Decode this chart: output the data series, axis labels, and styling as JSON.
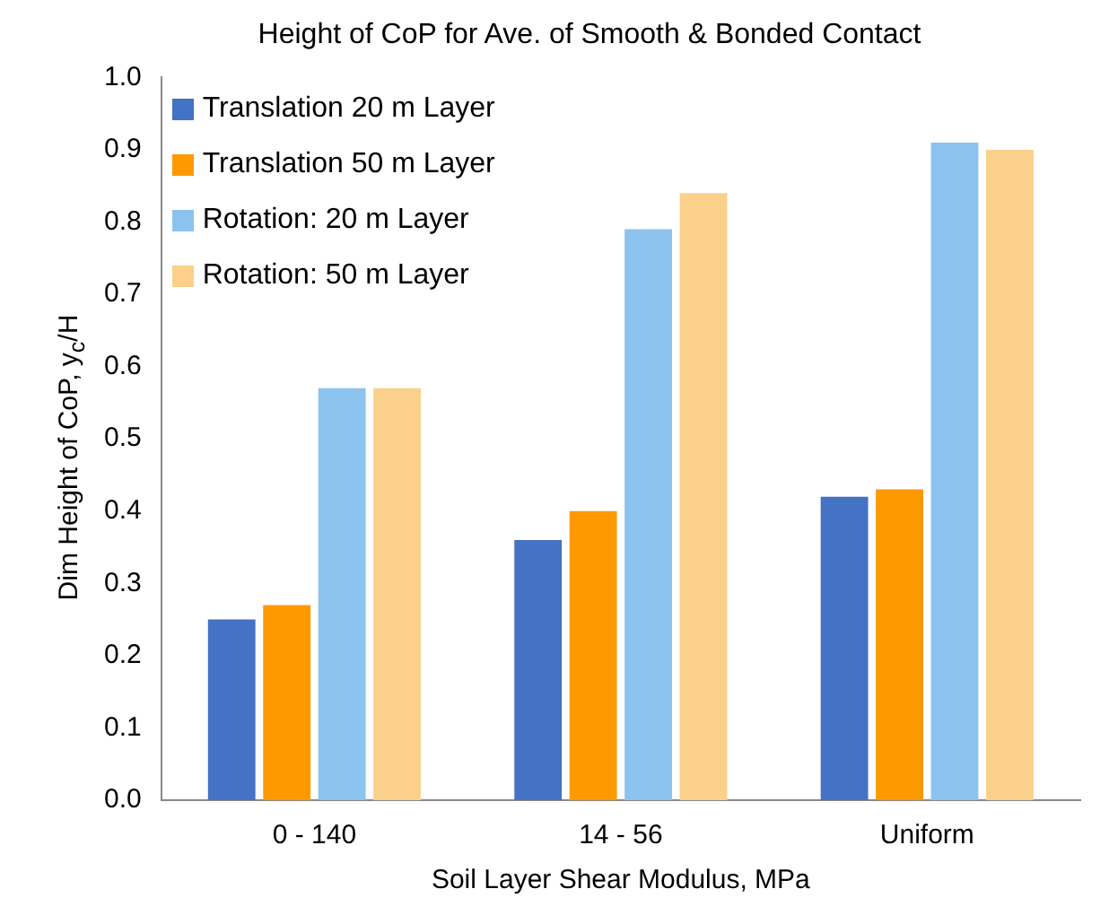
{
  "chart_data": {
    "type": "bar",
    "title": "Height of CoP for Ave. of Smooth & Bonded Contact",
    "xlabel": "Soil Layer Shear Modulus, MPa",
    "ylabel": "Dim Height of CoP, y$_{c}$/H",
    "categories": [
      "0 - 140",
      "14 - 56",
      "Uniform"
    ],
    "series": [
      {
        "name": "Translation 20 m Layer",
        "color": "#4472c4",
        "values": [
          0.25,
          0.36,
          0.42
        ]
      },
      {
        "name": "Translation 50 m Layer",
        "color": "#ff9900",
        "values": [
          0.27,
          0.4,
          0.43
        ]
      },
      {
        "name": "Rotation: 20 m Layer",
        "color": "#8cc3ee",
        "values": [
          0.57,
          0.79,
          0.91
        ]
      },
      {
        "name": "Rotation: 50 m Layer",
        "color": "#fbd08a",
        "values": [
          0.57,
          0.84,
          0.9
        ]
      }
    ],
    "ylim": [
      0,
      1
    ],
    "yticks": [
      {
        "value": 0,
        "label": "0.0"
      },
      0.1,
      0.2,
      0.3,
      0.4,
      0.5,
      0.6,
      0.7,
      0.8,
      0.9,
      {
        "value": 1,
        "label": "1.0"
      }
    ],
    "grid": false,
    "legend": "top left"
  }
}
